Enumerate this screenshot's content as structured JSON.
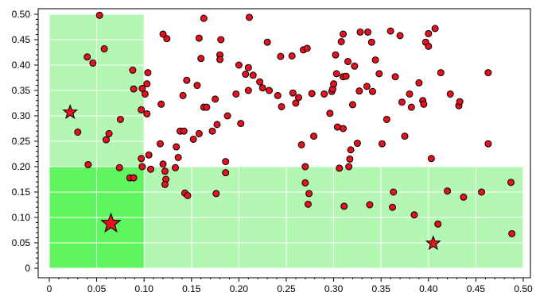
{
  "chart_data": {
    "type": "scatter",
    "title": "",
    "xlabel": "",
    "ylabel": "",
    "xlim": [
      0,
      0.5
    ],
    "ylim": [
      0,
      0.5
    ],
    "x_ticks": [
      "0",
      "0.05",
      "0.10",
      "0.15",
      "0.20",
      "0.25",
      "0.30",
      "0.35",
      "0.40",
      "0.45",
      "0.50"
    ],
    "x_tick_values": [
      0,
      0.05,
      0.1,
      0.15,
      0.2,
      0.25,
      0.3,
      0.35,
      0.4,
      0.45,
      0.5
    ],
    "y_ticks": [
      "0",
      "0.05",
      "0.10",
      "0.15",
      "0.20",
      "0.25",
      "0.30",
      "0.35",
      "0.40",
      "0.45",
      "0.50"
    ],
    "y_tick_values": [
      0,
      0.05,
      0.1,
      0.15,
      0.2,
      0.25,
      0.3,
      0.35,
      0.4,
      0.45,
      0.5
    ],
    "grid": true,
    "legend": "none",
    "colors": {
      "region_light": "#b3f7b3",
      "region_dark": "#5ef55e",
      "point_fill": "#e8101c",
      "point_stroke": "#000000",
      "grid": "#ffffff"
    },
    "regions": [
      {
        "x0": 0.0,
        "x1": 0.1,
        "y0": 0.2,
        "y1": 0.5,
        "shade": "light"
      },
      {
        "x0": 0.1,
        "x1": 0.5,
        "y0": 0.0,
        "y1": 0.2,
        "shade": "light"
      },
      {
        "x0": 0.0,
        "x1": 0.1,
        "y0": 0.0,
        "y1": 0.2,
        "shade": "dark"
      }
    ],
    "stars": [
      {
        "x": 0.022,
        "y": 0.307,
        "size": "small"
      },
      {
        "x": 0.065,
        "y": 0.088,
        "size": "large"
      },
      {
        "x": 0.405,
        "y": 0.049,
        "size": "small"
      }
    ],
    "points": [
      [
        0.053,
        0.498
      ],
      [
        0.058,
        0.432
      ],
      [
        0.04,
        0.416
      ],
      [
        0.046,
        0.404
      ],
      [
        0.03,
        0.268
      ],
      [
        0.06,
        0.253
      ],
      [
        0.063,
        0.265
      ],
      [
        0.075,
        0.293
      ],
      [
        0.088,
        0.39
      ],
      [
        0.089,
        0.353
      ],
      [
        0.098,
        0.354
      ],
      [
        0.097,
        0.312
      ],
      [
        0.101,
        0.343
      ],
      [
        0.103,
        0.363
      ],
      [
        0.104,
        0.385
      ],
      [
        0.103,
        0.304
      ],
      [
        0.041,
        0.204
      ],
      [
        0.074,
        0.198
      ],
      [
        0.085,
        0.178
      ],
      [
        0.089,
        0.178
      ],
      [
        0.097,
        0.216
      ],
      [
        0.098,
        0.2
      ],
      [
        0.105,
        0.223
      ],
      [
        0.107,
        0.195
      ],
      [
        0.12,
        0.205
      ],
      [
        0.117,
        0.245
      ],
      [
        0.12,
        0.461
      ],
      [
        0.124,
        0.452
      ],
      [
        0.118,
        0.323
      ],
      [
        0.122,
        0.191
      ],
      [
        0.123,
        0.175
      ],
      [
        0.122,
        0.165
      ],
      [
        0.134,
        0.239
      ],
      [
        0.136,
        0.218
      ],
      [
        0.133,
        0.198
      ],
      [
        0.138,
        0.27
      ],
      [
        0.142,
        0.27
      ],
      [
        0.145,
        0.37
      ],
      [
        0.141,
        0.34
      ],
      [
        0.143,
        0.148
      ],
      [
        0.146,
        0.143
      ],
      [
        0.152,
        0.254
      ],
      [
        0.156,
        0.36
      ],
      [
        0.158,
        0.265
      ],
      [
        0.158,
        0.453
      ],
      [
        0.16,
        0.413
      ],
      [
        0.163,
        0.492
      ],
      [
        0.163,
        0.317
      ],
      [
        0.166,
        0.317
      ],
      [
        0.172,
        0.27
      ],
      [
        0.175,
        0.333
      ],
      [
        0.177,
        0.283
      ],
      [
        0.176,
        0.147
      ],
      [
        0.18,
        0.42
      ],
      [
        0.18,
        0.411
      ],
      [
        0.181,
        0.45
      ],
      [
        0.186,
        0.21
      ],
      [
        0.186,
        0.188
      ],
      [
        0.188,
        0.3
      ],
      [
        0.197,
        0.343
      ],
      [
        0.2,
        0.4
      ],
      [
        0.202,
        0.285
      ],
      [
        0.207,
        0.382
      ],
      [
        0.211,
        0.494
      ],
      [
        0.21,
        0.35
      ],
      [
        0.21,
        0.395
      ],
      [
        0.215,
        0.38
      ],
      [
        0.222,
        0.367
      ],
      [
        0.225,
        0.355
      ],
      [
        0.23,
        0.445
      ],
      [
        0.232,
        0.35
      ],
      [
        0.241,
        0.34
      ],
      [
        0.244,
        0.417
      ],
      [
        0.245,
        0.318
      ],
      [
        0.256,
        0.418
      ],
      [
        0.257,
        0.345
      ],
      [
        0.26,
        0.325
      ],
      [
        0.263,
        0.336
      ],
      [
        0.268,
        0.43
      ],
      [
        0.272,
        0.433
      ],
      [
        0.266,
        0.243
      ],
      [
        0.27,
        0.2
      ],
      [
        0.27,
        0.168
      ],
      [
        0.274,
        0.147
      ],
      [
        0.273,
        0.126
      ],
      [
        0.277,
        0.344
      ],
      [
        0.279,
        0.26
      ],
      [
        0.29,
        0.343
      ],
      [
        0.296,
        0.305
      ],
      [
        0.298,
        0.348
      ],
      [
        0.299,
        0.353
      ],
      [
        0.3,
        0.363
      ],
      [
        0.302,
        0.42
      ],
      [
        0.303,
        0.383
      ],
      [
        0.304,
        0.278
      ],
      [
        0.306,
        0.197
      ],
      [
        0.308,
        0.446
      ],
      [
        0.31,
        0.377
      ],
      [
        0.31,
        0.461
      ],
      [
        0.311,
        0.122
      ],
      [
        0.31,
        0.275
      ],
      [
        0.313,
        0.378
      ],
      [
        0.315,
        0.407
      ],
      [
        0.316,
        0.2
      ],
      [
        0.317,
        0.215
      ],
      [
        0.318,
        0.233
      ],
      [
        0.32,
        0.322
      ],
      [
        0.322,
        0.398
      ],
      [
        0.325,
        0.246
      ],
      [
        0.327,
        0.349
      ],
      [
        0.328,
        0.465
      ],
      [
        0.335,
        0.358
      ],
      [
        0.336,
        0.465
      ],
      [
        0.338,
        0.125
      ],
      [
        0.341,
        0.348
      ],
      [
        0.34,
        0.445
      ],
      [
        0.344,
        0.41
      ],
      [
        0.348,
        0.383
      ],
      [
        0.351,
        0.245
      ],
      [
        0.356,
        0.293
      ],
      [
        0.36,
        0.467
      ],
      [
        0.362,
        0.12
      ],
      [
        0.363,
        0.15
      ],
      [
        0.365,
        0.377
      ],
      [
        0.37,
        0.458
      ],
      [
        0.372,
        0.327
      ],
      [
        0.375,
        0.26
      ],
      [
        0.38,
        0.343
      ],
      [
        0.382,
        0.317
      ],
      [
        0.385,
        0.105
      ],
      [
        0.39,
        0.365
      ],
      [
        0.394,
        0.33
      ],
      [
        0.395,
        0.323
      ],
      [
        0.397,
        0.445
      ],
      [
        0.4,
        0.462
      ],
      [
        0.4,
        0.437
      ],
      [
        0.403,
        0.216
      ],
      [
        0.407,
        0.472
      ],
      [
        0.41,
        0.087
      ],
      [
        0.413,
        0.385
      ],
      [
        0.42,
        0.152
      ],
      [
        0.423,
        0.343
      ],
      [
        0.432,
        0.32
      ],
      [
        0.433,
        0.328
      ],
      [
        0.437,
        0.14
      ],
      [
        0.456,
        0.15
      ],
      [
        0.463,
        0.245
      ],
      [
        0.463,
        0.385
      ],
      [
        0.487,
        0.169
      ],
      [
        0.488,
        0.068
      ]
    ]
  }
}
